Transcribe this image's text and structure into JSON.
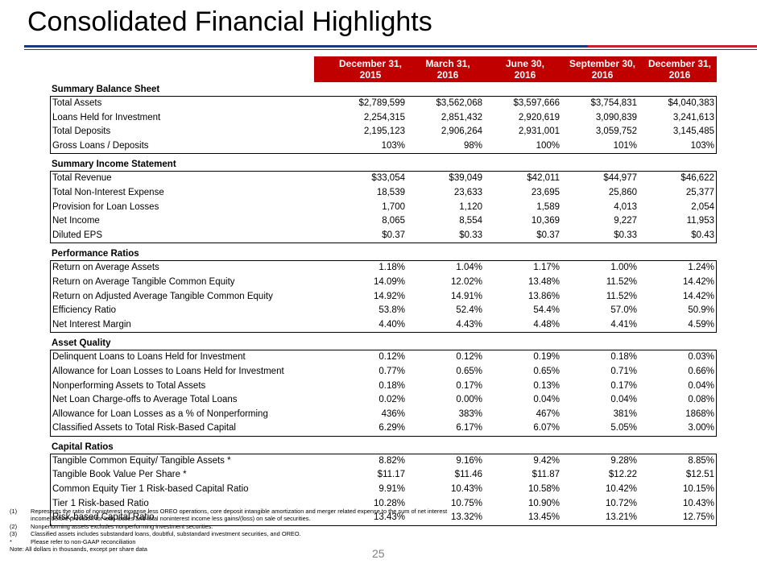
{
  "title": "Consolidated Financial Highlights",
  "columns": [
    [
      "December 31,",
      "2015"
    ],
    [
      "March 31,",
      "2016"
    ],
    [
      "June 30,",
      "2016"
    ],
    [
      "September 30,",
      "2016"
    ],
    [
      "December 31,",
      "2016"
    ]
  ],
  "sections": [
    {
      "title": "Summary Balance Sheet",
      "rows": [
        [
          "Total Assets",
          "$2,789,599",
          "$3,562,068",
          "$3,597,666",
          "$3,754,831",
          "$4,040,383"
        ],
        [
          "Loans Held for Investment",
          "2,254,315",
          "2,851,432",
          "2,920,619",
          "3,090,839",
          "3,241,613"
        ],
        [
          "Total Deposits",
          "2,195,123",
          "2,906,264",
          "2,931,001",
          "3,059,752",
          "3,145,485"
        ],
        [
          "Gross Loans / Deposits",
          "103%",
          "98%",
          "100%",
          "101%",
          "103%"
        ]
      ]
    },
    {
      "title": "Summary Income Statement",
      "rows": [
        [
          "Total Revenue",
          "$33,054",
          "$39,049",
          "$42,011",
          "$44,977",
          "$46,622"
        ],
        [
          "Total Non-Interest Expense",
          "18,539",
          "23,633",
          "23,695",
          "25,860",
          "25,377"
        ],
        [
          "Provision for Loan Losses",
          "1,700",
          "1,120",
          "1,589",
          "4,013",
          "2,054"
        ],
        [
          "Net Income",
          "8,065",
          "8,554",
          "10,369",
          "9,227",
          "11,953"
        ],
        [
          "Diluted EPS",
          "$0.37",
          "$0.33",
          "$0.37",
          "$0.33",
          "$0.43"
        ]
      ]
    },
    {
      "title": "Performance Ratios",
      "rows": [
        [
          "Return on Average Assets",
          "1.18%",
          "1.04%",
          "1.17%",
          "1.00%",
          "1.24%"
        ],
        [
          "Return on Average Tangible Common Equity",
          "14.09%",
          "12.02%",
          "13.48%",
          "11.52%",
          "14.42%"
        ],
        [
          "Return on Adjusted Average Tangible Common Equity",
          "14.92%",
          "14.91%",
          "13.86%",
          "11.52%",
          "14.42%"
        ],
        [
          "Efficiency Ratio",
          "53.8%",
          "52.4%",
          "54.4%",
          "57.0%",
          "50.9%"
        ],
        [
          "Net Interest Margin",
          "4.40%",
          "4.43%",
          "4.48%",
          "4.41%",
          "4.59%"
        ]
      ]
    },
    {
      "title": "Asset Quality",
      "rows": [
        [
          "Delinquent Loans to Loans Held for Investment",
          "0.12%",
          "0.12%",
          "0.19%",
          "0.18%",
          "0.03%"
        ],
        [
          "Allowance for Loan Losses to Loans Held for Investment",
          "0.77%",
          "0.65%",
          "0.65%",
          "0.71%",
          "0.66%"
        ],
        [
          "Nonperforming Assets to Total Assets",
          "0.18%",
          "0.17%",
          "0.13%",
          "0.17%",
          "0.04%"
        ],
        [
          "Net Loan Charge-offs to Average Total Loans",
          "0.02%",
          "0.00%",
          "0.04%",
          "0.04%",
          "0.08%"
        ],
        [
          "Allowance for Loan Losses as a % of Nonperforming",
          "436%",
          "383%",
          "467%",
          "381%",
          "1868%"
        ],
        [
          "Classified Assets to Total Risk-Based Capital",
          "6.29%",
          "6.17%",
          "6.07%",
          "5.05%",
          "3.00%"
        ]
      ]
    },
    {
      "title": "Capital Ratios",
      "rows": [
        [
          "Tangible Common Equity/ Tangible Assets *",
          "8.82%",
          "9.16%",
          "9.42%",
          "9.28%",
          "8.85%"
        ],
        [
          "Tangible Book Value Per Share *",
          "$11.17",
          "$11.46",
          "$11.87",
          "$12.22",
          "$12.51"
        ],
        [
          "Common Equity Tier 1 Risk-based Capital Ratio",
          "9.91%",
          "10.43%",
          "10.58%",
          "10.42%",
          "10.15%"
        ],
        [
          "Tier 1  Risk-based Ratio",
          "10.28%",
          "10.75%",
          "10.90%",
          "10.72%",
          "10.43%"
        ],
        [
          "Risk-based Capital Ratio",
          "13.43%",
          "13.32%",
          "13.45%",
          "13.21%",
          "12.75%"
        ]
      ]
    }
  ],
  "footnotes": [
    [
      "(1)",
      "Represents the ratio of noninterest expense less OREO operations, core deposit intangible amortization and merger related expense to the sum of net interest",
      "income before provision for loan losses and total noninterest income less gains/(loss) on sale of securities."
    ],
    [
      "(2)",
      "Nonperforming assets excludes nonperforming investment securities."
    ],
    [
      "(3)",
      "Classified assets includes substandard loans, doubtful, substandard investment securities, and OREO."
    ],
    [
      "*",
      "Please refer to non-GAAP reconciliation"
    ]
  ],
  "note": "Note: All dollars in thousands, except per share data",
  "page_number": "25"
}
